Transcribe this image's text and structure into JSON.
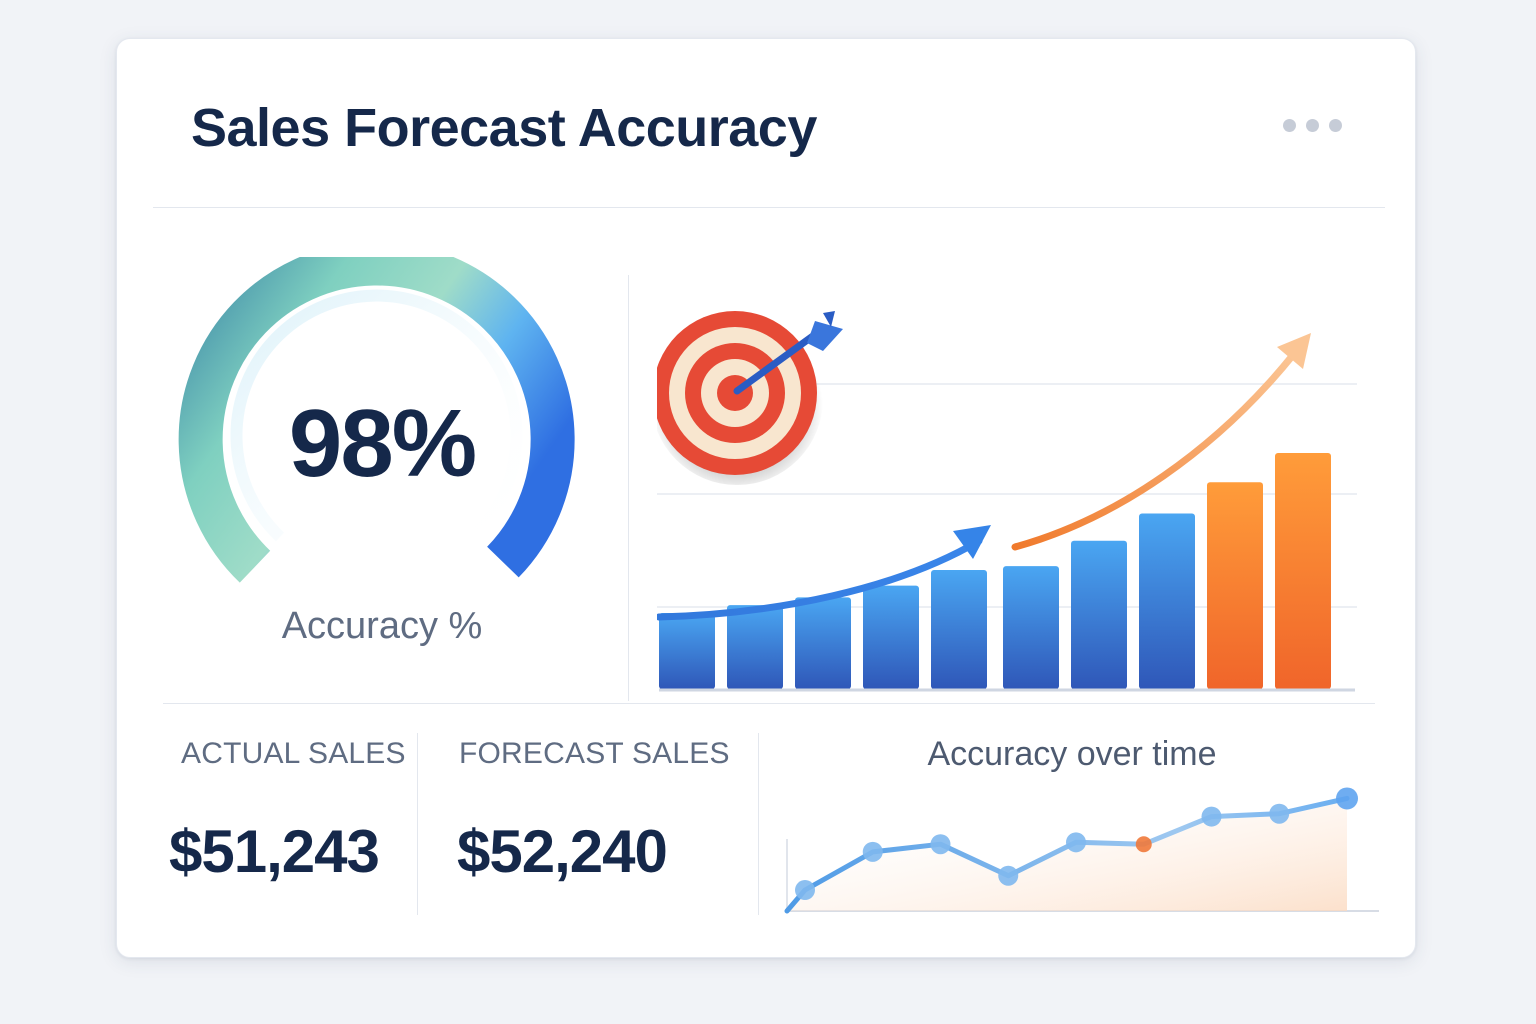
{
  "card": {
    "title": "Sales Forecast Accuracy",
    "menu_icon": "more-horizontal-icon"
  },
  "gauge": {
    "value_text": "98%",
    "value": 98,
    "label": "Accuracy %"
  },
  "target_icon": "target-with-arrow-icon",
  "bar_chart": {
    "type": "bar",
    "values": [
      3.9,
      4.3,
      4.7,
      5.3,
      6.1,
      6.3,
      7.6,
      9.0,
      10.6,
      12.1
    ],
    "series_colors": [
      "blue",
      "blue",
      "blue",
      "blue",
      "blue",
      "blue",
      "blue",
      "blue",
      "orange",
      "orange"
    ],
    "ylim": [
      0,
      14
    ],
    "grid": true
  },
  "stats": {
    "actual_label": "ACTUAL SALES",
    "actual_value": "$51,243",
    "forecast_label": "FORECAST SALES",
    "forecast_value": "$52,240"
  },
  "chart_data": {
    "type": "line",
    "title": "Accuracy over time",
    "x": [
      1,
      2,
      3,
      4,
      5,
      6,
      7,
      8,
      9
    ],
    "values": [
      22,
      62,
      70,
      37,
      72,
      70,
      99,
      102,
      118
    ],
    "highlight_index": 5,
    "ylim": [
      0,
      130
    ]
  },
  "colors": {
    "title": "#15284a",
    "accent_blue": "#3b7ee0",
    "accent_orange": "#f2782c",
    "muted_text": "#5f6c82"
  }
}
